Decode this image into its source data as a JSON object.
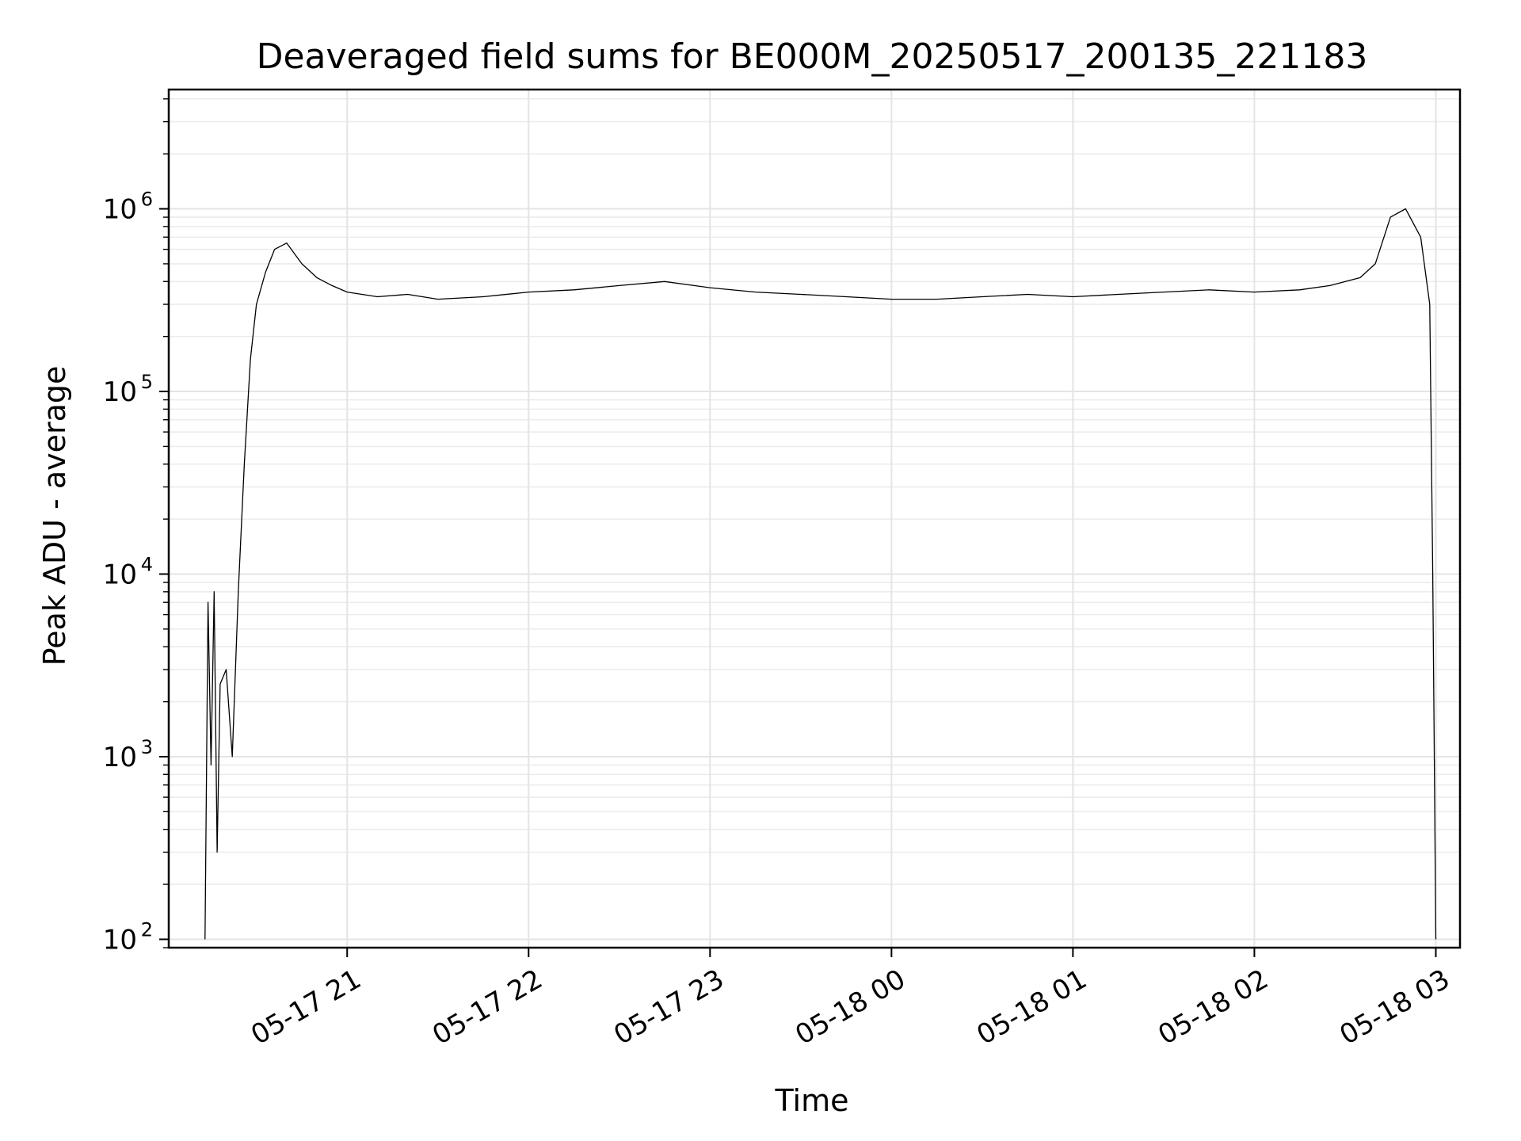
{
  "chart_data": {
    "type": "line",
    "title": "Deaveraged field sums for BE000M_20250517_200135_221183",
    "xlabel": "Time",
    "ylabel": "Peak ADU - average",
    "yscale": "log",
    "ylim": [
      90,
      4500000
    ],
    "xlim": [
      "2025-05-17 20:01",
      "2025-05-18 03:08"
    ],
    "grid": true,
    "line_color": "#000000",
    "x_ticks": [
      {
        "value": "2025-05-17 21:00",
        "label": "05-17 21"
      },
      {
        "value": "2025-05-17 22:00",
        "label": "05-17 22"
      },
      {
        "value": "2025-05-17 23:00",
        "label": "05-17 23"
      },
      {
        "value": "2025-05-18 00:00",
        "label": "05-18 00"
      },
      {
        "value": "2025-05-18 01:00",
        "label": "05-18 01"
      },
      {
        "value": "2025-05-18 02:00",
        "label": "05-18 02"
      },
      {
        "value": "2025-05-18 03:00",
        "label": "05-18 03"
      }
    ],
    "y_ticks": [
      {
        "value": 100,
        "base": "10",
        "exp": "2"
      },
      {
        "value": 1000,
        "base": "10",
        "exp": "3"
      },
      {
        "value": 10000,
        "base": "10",
        "exp": "4"
      },
      {
        "value": 100000,
        "base": "10",
        "exp": "5"
      },
      {
        "value": 1000000,
        "base": "10",
        "exp": "6"
      }
    ],
    "series": [
      {
        "x": [
          "2025-05-17 20:13",
          "2025-05-17 20:14",
          "2025-05-17 20:15",
          "2025-05-17 20:16",
          "2025-05-17 20:17",
          "2025-05-17 20:18",
          "2025-05-17 20:20",
          "2025-05-17 20:22",
          "2025-05-17 20:24",
          "2025-05-17 20:26",
          "2025-05-17 20:28",
          "2025-05-17 20:30",
          "2025-05-17 20:33",
          "2025-05-17 20:36",
          "2025-05-17 20:40",
          "2025-05-17 20:45",
          "2025-05-17 20:50",
          "2025-05-17 20:55",
          "2025-05-17 21:00",
          "2025-05-17 21:10",
          "2025-05-17 21:20",
          "2025-05-17 21:30",
          "2025-05-17 21:45",
          "2025-05-17 22:00",
          "2025-05-17 22:15",
          "2025-05-17 22:30",
          "2025-05-17 22:45",
          "2025-05-17 23:00",
          "2025-05-17 23:15",
          "2025-05-17 23:30",
          "2025-05-17 23:45",
          "2025-05-18 00:00",
          "2025-05-18 00:15",
          "2025-05-18 00:30",
          "2025-05-18 00:45",
          "2025-05-18 01:00",
          "2025-05-18 01:15",
          "2025-05-18 01:30",
          "2025-05-18 01:45",
          "2025-05-18 02:00",
          "2025-05-18 02:15",
          "2025-05-18 02:25",
          "2025-05-18 02:35",
          "2025-05-18 02:40",
          "2025-05-18 02:45",
          "2025-05-18 02:50",
          "2025-05-18 02:55",
          "2025-05-18 02:58",
          "2025-05-18 02:59",
          "2025-05-18 03:00"
        ],
        "y": [
          100,
          7000,
          900,
          8000,
          300,
          2500,
          3000,
          1000,
          8000,
          40000,
          150000,
          300000,
          450000,
          600000,
          650000,
          500000,
          420000,
          380000,
          350000,
          330000,
          340000,
          320000,
          330000,
          350000,
          360000,
          380000,
          400000,
          370000,
          350000,
          340000,
          330000,
          320000,
          320000,
          330000,
          340000,
          330000,
          340000,
          350000,
          360000,
          350000,
          360000,
          380000,
          420000,
          500000,
          900000,
          1000000,
          700000,
          300000,
          10000,
          100
        ]
      }
    ]
  }
}
